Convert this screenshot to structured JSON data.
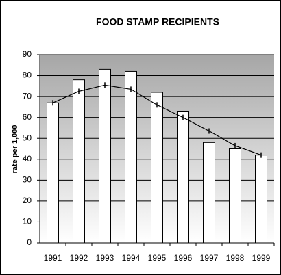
{
  "chart_data": {
    "type": "bar",
    "title": "FOOD STAMP RECIPIENTS",
    "y_label": "rate per 1,000",
    "categories": [
      "1991",
      "1992",
      "1993",
      "1994",
      "1995",
      "1996",
      "1997",
      "1998",
      "1999"
    ],
    "series": [
      {
        "type": "bar",
        "color": "#ffffff",
        "values": [
          67,
          78,
          83,
          82,
          72,
          63,
          48,
          45,
          42
        ]
      },
      {
        "type": "line",
        "color": "#000000",
        "values": [
          67,
          72.5,
          75.5,
          73.5,
          66,
          60,
          53.5,
          46.5,
          42
        ]
      }
    ],
    "ylim": [
      0,
      90
    ],
    "yticks": [
      0,
      10,
      20,
      30,
      40,
      50,
      60,
      70,
      80,
      90
    ],
    "grid": true
  }
}
